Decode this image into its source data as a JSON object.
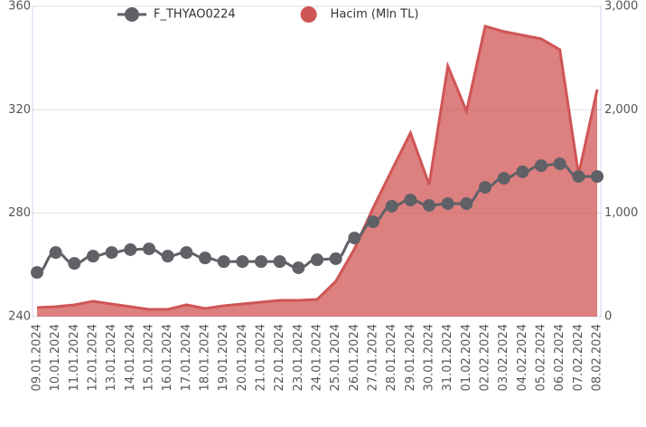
{
  "chart_data": {
    "type": "line_area",
    "categories": [
      "09.01.2024",
      "10.01.2024",
      "11.01.2024",
      "12.01.2024",
      "13.01.2024",
      "14.01.2024",
      "15.01.2024",
      "16.01.2024",
      "17.01.2024",
      "18.01.2024",
      "19.01.2024",
      "20.01.2024",
      "21.01.2024",
      "22.01.2024",
      "23.01.2024",
      "24.01.2024",
      "25.01.2024",
      "26.01.2024",
      "27.01.2024",
      "28.01.2024",
      "29.01.2024",
      "30.01.2024",
      "31.01.2024",
      "01.02.2024",
      "02.02.2024",
      "03.02.2024",
      "04.02.2024",
      "05.02.2024",
      "06.02.2024",
      "07.02.2024",
      "08.02.2024"
    ],
    "series": [
      {
        "name": "F_THYAO0224",
        "kind": "line",
        "color": "#5f6166",
        "values": [
          257.1,
          264.8,
          260.6,
          263.4,
          264.8,
          265.9,
          266.2,
          263.4,
          264.8,
          262.7,
          261.3,
          261.3,
          261.3,
          261.3,
          258.9,
          262.0,
          262.4,
          270.4,
          276.7,
          282.7,
          285.1,
          283.0,
          283.7,
          283.7,
          290.0,
          293.5,
          296.0,
          298.4,
          299.1,
          294.2,
          294.2
        ]
      },
      {
        "name": "Hacim (Mln TL)",
        "kind": "area",
        "axis": "y2",
        "color": "#d05555",
        "values": [
          87,
          96,
          114,
          149,
          122,
          96,
          70,
          70,
          114,
          79,
          105,
          122,
          140,
          157,
          157,
          166,
          341,
          656,
          1050,
          1417,
          1776,
          1277,
          2423,
          1986,
          2808,
          2756,
          2721,
          2686,
          2581,
          1374,
          2196
        ]
      }
    ],
    "ylim": [
      240,
      360
    ],
    "yticks": [
      240,
      280,
      320,
      360
    ],
    "y2lim": [
      0,
      3000
    ],
    "y2ticks": [
      0,
      {
        "value": 1000,
        "label": "1,000"
      },
      {
        "value": 2000,
        "label": "2,000"
      },
      {
        "value": 3000,
        "label": "3,000"
      }
    ],
    "grid": true,
    "legend": "top"
  }
}
